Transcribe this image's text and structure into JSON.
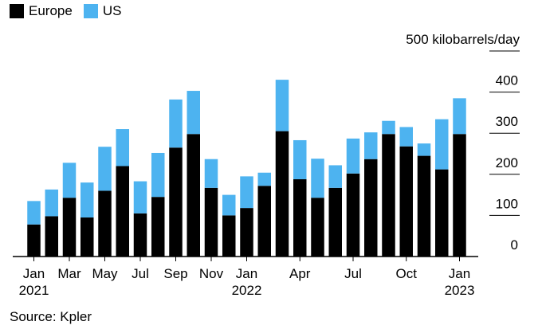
{
  "colors": {
    "europe": "#000000",
    "us": "#4db3f0",
    "grid": "#000000"
  },
  "legend": {
    "europe": "Europe",
    "us": "US"
  },
  "source": "Source: Kpler",
  "chart_data": {
    "type": "bar",
    "stacked": true,
    "ylabel": "kilobarrels/day",
    "ylim": [
      0,
      500
    ],
    "yticks": [
      0,
      100,
      200,
      300,
      400,
      500
    ],
    "ytick_labels": [
      "0",
      "100",
      "200",
      "300",
      "400",
      "500"
    ],
    "grid": true,
    "legend_position": "top-left",
    "categories": [
      "2021-01",
      "2021-02",
      "2021-03",
      "2021-04",
      "2021-05",
      "2021-06",
      "2021-07",
      "2021-08",
      "2021-09",
      "2021-10",
      "2021-11",
      "2021-12",
      "2022-01",
      "2022-02",
      "2022-03",
      "2022-04",
      "2022-05",
      "2022-06",
      "2022-07",
      "2022-08",
      "2022-09",
      "2022-10",
      "2022-11",
      "2022-12",
      "2023-01"
    ],
    "x_tick_labels": [
      {
        "index": 0,
        "label": "Jan",
        "sublabel": "2021"
      },
      {
        "index": 2,
        "label": "Mar",
        "sublabel": ""
      },
      {
        "index": 4,
        "label": "May",
        "sublabel": ""
      },
      {
        "index": 6,
        "label": "Jul",
        "sublabel": ""
      },
      {
        "index": 8,
        "label": "Sep",
        "sublabel": ""
      },
      {
        "index": 10,
        "label": "Nov",
        "sublabel": ""
      },
      {
        "index": 12,
        "label": "Jan",
        "sublabel": "2022"
      },
      {
        "index": 15,
        "label": "Apr",
        "sublabel": ""
      },
      {
        "index": 18,
        "label": "Jul",
        "sublabel": ""
      },
      {
        "index": 21,
        "label": "Oct",
        "sublabel": ""
      },
      {
        "index": 24,
        "label": "Jan",
        "sublabel": "2023"
      }
    ],
    "series": [
      {
        "name": "Europe",
        "color": "#000000",
        "values": [
          78,
          98,
          143,
          95,
          160,
          220,
          105,
          145,
          265,
          298,
          167,
          100,
          118,
          172,
          305,
          188,
          143,
          167,
          202,
          237,
          298,
          268,
          245,
          212,
          298
        ]
      },
      {
        "name": "US",
        "color": "#4db3f0",
        "values": [
          57,
          65,
          85,
          85,
          107,
          90,
          78,
          107,
          117,
          105,
          70,
          50,
          77,
          32,
          125,
          95,
          95,
          55,
          85,
          65,
          32,
          47,
          30,
          122,
          87
        ]
      }
    ]
  }
}
